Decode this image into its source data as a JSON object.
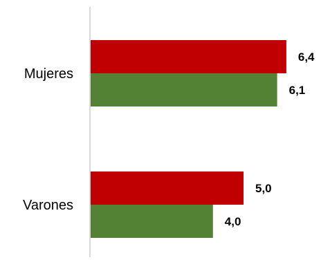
{
  "chart_data": {
    "type": "bar",
    "orientation": "horizontal",
    "categories": [
      "Mujeres",
      "Varones"
    ],
    "series": [
      {
        "color": "#C00000",
        "values": [
          6.4,
          5.0
        ],
        "labels": [
          "6,4",
          "5,0"
        ]
      },
      {
        "color": "#548235",
        "values": [
          6.1,
          4.0
        ],
        "labels": [
          "6,1",
          "4,0"
        ]
      }
    ],
    "xlim": [
      0,
      7
    ],
    "axis_color": "#D9D9D9",
    "legend": "none",
    "grid": false
  }
}
